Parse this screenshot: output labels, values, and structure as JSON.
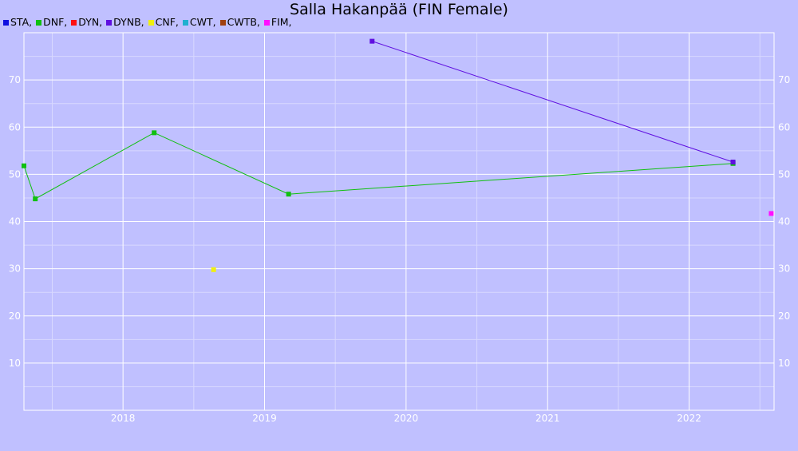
{
  "chart_data": {
    "type": "line",
    "title": "Salla Hakanpää (FIN Female)",
    "legend": [
      {
        "label": "STA,",
        "color": "#1010e0"
      },
      {
        "label": "DNF,",
        "color": "#10c010"
      },
      {
        "label": "DYN,",
        "color": "#ff1010"
      },
      {
        "label": "DYNB,",
        "color": "#6010e0"
      },
      {
        "label": "CNF,",
        "color": "#f0f010"
      },
      {
        "label": "CWT,",
        "color": "#20b0d0"
      },
      {
        "label": "CWTB,",
        "color": "#a04010"
      },
      {
        "label": "FIM,",
        "color": "#ff10ff"
      }
    ],
    "x_ticks": [
      "2018",
      "2019",
      "2020",
      "2021",
      "2022"
    ],
    "y_ticks": [
      "10",
      "20",
      "30",
      "40",
      "50",
      "60",
      "70"
    ],
    "xlim": [
      2017.3,
      2022.6
    ],
    "ylim": [
      0,
      80
    ],
    "grid": true,
    "series": [
      {
        "name": "STA,",
        "color": "#1010e0",
        "points": [
          [
            2022.31,
            52.4
          ]
        ]
      },
      {
        "name": "DNF,",
        "color": "#10c010",
        "points": [
          [
            2017.3,
            51.8
          ],
          [
            2017.38,
            44.8
          ],
          [
            2018.22,
            58.8
          ],
          [
            2019.17,
            45.8
          ],
          [
            2022.31,
            52.3
          ]
        ]
      },
      {
        "name": "DYNB,",
        "color": "#6010e0",
        "points": [
          [
            2019.76,
            78.2
          ],
          [
            2022.31,
            52.6
          ]
        ]
      },
      {
        "name": "CNF,",
        "color": "#f0f010",
        "points": [
          [
            2018.64,
            29.8
          ]
        ]
      },
      {
        "name": "FIM,",
        "color": "#ff10ff",
        "points": [
          [
            2022.58,
            41.7
          ]
        ]
      }
    ]
  }
}
